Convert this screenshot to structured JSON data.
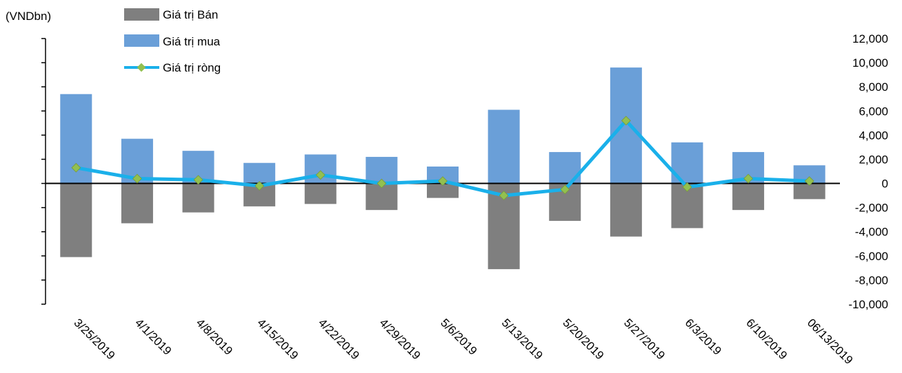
{
  "chart_data": {
    "type": "bar",
    "unit_label": "(VNDbn)",
    "categories": [
      "3/25/2019",
      "4/1/2019",
      "4/8/2019",
      "4/15/2019",
      "4/22/2019",
      "4/29/2019",
      "5/6/2019",
      "5/13/2019",
      "5/20/2019",
      "5/27/2019",
      "6/3/2019",
      "6/10/2019",
      "06/13/2019"
    ],
    "series": [
      {
        "name": "Giá trị Bán",
        "type": "bar",
        "color": "#7f7f7f",
        "values": [
          -6100,
          -3300,
          -2400,
          -1900,
          -1700,
          -2200,
          -1200,
          -7100,
          -3100,
          -4400,
          -3700,
          -2200,
          -1300
        ]
      },
      {
        "name": "Giá trị mua",
        "type": "bar",
        "color": "#6a9fd8",
        "values": [
          7400,
          3700,
          2700,
          1700,
          2400,
          2200,
          1400,
          6100,
          2600,
          9600,
          3400,
          2600,
          1500
        ]
      },
      {
        "name": "Giá trị ròng",
        "type": "line",
        "color": "#1ab0ea",
        "marker_color": "#92c050",
        "values": [
          1300,
          400,
          300,
          -200,
          700,
          0,
          200,
          -1000,
          -500,
          5200,
          -300,
          400,
          200
        ]
      }
    ],
    "y_axis": {
      "min": -10000,
      "max": 12000,
      "step": 2000,
      "tick_labels": [
        "-10,000",
        "-8,000",
        "-6,000",
        "-4,000",
        "-2,000",
        "0",
        "2,000",
        "4,000",
        "6,000",
        "8,000",
        "10,000",
        "12,000"
      ],
      "position": "right"
    },
    "grid": false,
    "legend": "top-left"
  }
}
